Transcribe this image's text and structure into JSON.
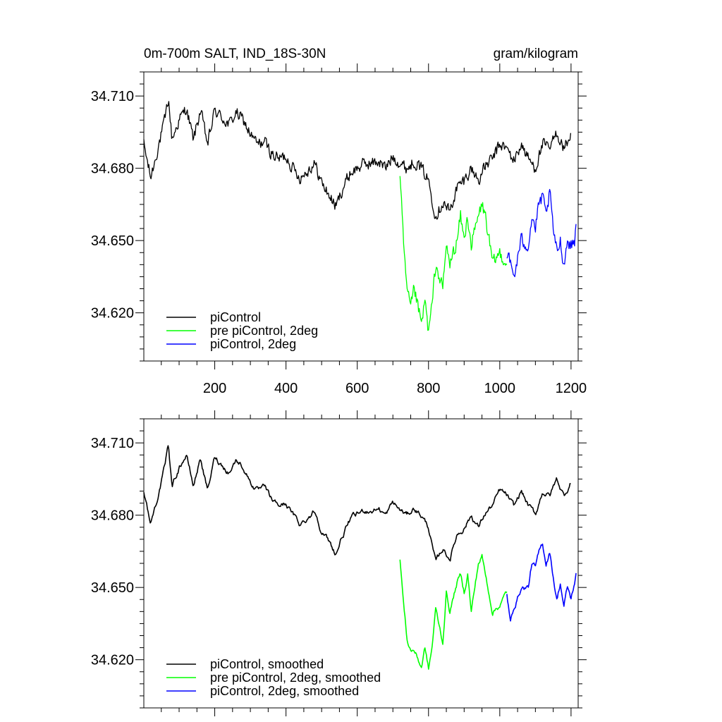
{
  "figure": {
    "title_left": "0m-700m SALT, IND_18S-30N",
    "title_right": "gram/kilogram"
  },
  "colors": {
    "piControl": "#000000",
    "pre2deg": "#00ff00",
    "pi2deg": "#0000ff"
  },
  "chart_data": [
    {
      "type": "line",
      "panel": "raw",
      "xlim": [
        1,
        1220
      ],
      "ylim": [
        34.6,
        34.72
      ],
      "xticks": [
        200,
        400,
        600,
        800,
        1000,
        1200
      ],
      "xtick_labels": [
        "200",
        "400",
        "600",
        "800",
        "1000",
        "1200"
      ],
      "yticks": [
        34.62,
        34.65,
        34.68,
        34.71
      ],
      "ytick_labels": [
        "34.620",
        "34.650",
        "34.680",
        "34.710"
      ],
      "legend_position": "bottom-left",
      "series": [
        {
          "name": "piControl",
          "color_key": "piControl",
          "x": [
            1,
            20,
            40,
            60,
            70,
            80,
            100,
            120,
            140,
            160,
            180,
            200,
            220,
            240,
            260,
            280,
            300,
            320,
            340,
            360,
            380,
            400,
            420,
            440,
            460,
            480,
            500,
            520,
            540,
            560,
            580,
            600,
            620,
            640,
            660,
            680,
            700,
            720,
            740,
            760,
            780,
            800,
            820,
            840,
            860,
            880,
            900,
            920,
            940,
            960,
            980,
            1000,
            1020,
            1040,
            1060,
            1080,
            1100,
            1120,
            1140,
            1160,
            1180,
            1200
          ],
          "y": [
            34.69,
            34.676,
            34.688,
            34.7,
            34.709,
            34.692,
            34.7,
            34.705,
            34.692,
            34.704,
            34.69,
            34.704,
            34.701,
            34.698,
            34.703,
            34.7,
            34.694,
            34.69,
            34.691,
            34.686,
            34.684,
            34.685,
            34.68,
            34.676,
            34.679,
            34.682,
            34.674,
            34.669,
            34.664,
            34.672,
            34.678,
            34.68,
            34.682,
            34.682,
            34.683,
            34.68,
            34.685,
            34.682,
            34.68,
            34.683,
            34.68,
            34.675,
            34.66,
            34.666,
            34.662,
            34.672,
            34.675,
            34.68,
            34.675,
            34.681,
            34.684,
            34.69,
            34.688,
            34.683,
            34.69,
            34.684,
            34.68,
            34.69,
            34.688,
            34.695,
            34.688,
            34.694
          ]
        },
        {
          "name": "pre piControl, 2deg",
          "color_key": "pre2deg",
          "x": [
            720,
            730,
            740,
            750,
            760,
            780,
            790,
            800,
            810,
            820,
            840,
            850,
            860,
            880,
            890,
            900,
            910,
            920,
            940,
            950,
            960,
            980,
            1000,
            1020
          ],
          "y": [
            34.676,
            34.648,
            34.628,
            34.622,
            34.63,
            34.615,
            34.625,
            34.612,
            34.623,
            34.64,
            34.63,
            34.648,
            34.64,
            34.65,
            34.66,
            34.65,
            34.66,
            34.648,
            34.66,
            34.665,
            34.66,
            34.64,
            34.645,
            34.64
          ],
          "noise": 0.004
        },
        {
          "name": "piControl, 2deg",
          "color_key": "pi2deg",
          "x": [
            1020,
            1030,
            1040,
            1060,
            1080,
            1090,
            1100,
            1110,
            1120,
            1130,
            1140,
            1150,
            1160,
            1170,
            1180,
            1190,
            1200,
            1210,
            1215
          ],
          "y": [
            34.645,
            34.64,
            34.635,
            34.65,
            34.648,
            34.66,
            34.655,
            34.665,
            34.668,
            34.66,
            34.67,
            34.655,
            34.645,
            34.65,
            34.64,
            34.65,
            34.648,
            34.65,
            34.66
          ],
          "noise": 0.004
        }
      ]
    },
    {
      "type": "line",
      "panel": "smoothed",
      "xlim": [
        1,
        1220
      ],
      "ylim": [
        34.6,
        34.72
      ],
      "xticks": [
        200,
        400,
        600,
        800,
        1000,
        1200
      ],
      "yticks": [
        34.62,
        34.65,
        34.68,
        34.71
      ],
      "ytick_labels": [
        "34.620",
        "34.650",
        "34.680",
        "34.710"
      ],
      "legend_position": "bottom-left",
      "series": [
        {
          "name": "piControl, smoothed",
          "color_key": "piControl",
          "x": [
            1,
            20,
            40,
            60,
            70,
            80,
            100,
            120,
            140,
            160,
            180,
            200,
            220,
            240,
            260,
            280,
            300,
            320,
            340,
            360,
            380,
            400,
            420,
            440,
            460,
            480,
            500,
            520,
            540,
            560,
            580,
            600,
            620,
            640,
            660,
            680,
            700,
            720,
            740,
            760,
            780,
            800,
            820,
            840,
            860,
            880,
            900,
            920,
            940,
            960,
            980,
            1000,
            1020,
            1040,
            1060,
            1080,
            1100,
            1120,
            1140,
            1160,
            1180,
            1200
          ],
          "y": [
            34.69,
            34.676,
            34.688,
            34.7,
            34.709,
            34.692,
            34.7,
            34.705,
            34.692,
            34.704,
            34.69,
            34.704,
            34.701,
            34.698,
            34.703,
            34.7,
            34.694,
            34.69,
            34.691,
            34.686,
            34.684,
            34.685,
            34.68,
            34.676,
            34.679,
            34.682,
            34.674,
            34.669,
            34.664,
            34.672,
            34.678,
            34.68,
            34.682,
            34.682,
            34.683,
            34.68,
            34.685,
            34.682,
            34.68,
            34.683,
            34.68,
            34.675,
            34.66,
            34.666,
            34.662,
            34.672,
            34.675,
            34.68,
            34.675,
            34.681,
            34.684,
            34.69,
            34.688,
            34.683,
            34.69,
            34.684,
            34.68,
            34.69,
            34.688,
            34.695,
            34.688,
            34.694
          ]
        },
        {
          "name": "pre piControl, 2deg, smoothed",
          "color_key": "pre2deg",
          "x": [
            720,
            730,
            740,
            750,
            760,
            780,
            790,
            800,
            810,
            820,
            840,
            850,
            860,
            880,
            890,
            900,
            910,
            920,
            940,
            950,
            960,
            980,
            1000,
            1020
          ],
          "y": [
            34.662,
            34.643,
            34.628,
            34.624,
            34.624,
            34.617,
            34.625,
            34.616,
            34.625,
            34.641,
            34.627,
            34.648,
            34.64,
            34.652,
            34.655,
            34.648,
            34.656,
            34.64,
            34.66,
            34.663,
            34.655,
            34.64,
            34.643,
            34.648
          ]
        },
        {
          "name": "piControl, 2deg, smoothed",
          "color_key": "pi2deg",
          "x": [
            1020,
            1030,
            1040,
            1060,
            1080,
            1090,
            1100,
            1110,
            1120,
            1130,
            1140,
            1150,
            1160,
            1170,
            1180,
            1190,
            1200,
            1210,
            1215
          ],
          "y": [
            34.647,
            34.635,
            34.642,
            34.65,
            34.65,
            34.66,
            34.658,
            34.664,
            34.668,
            34.66,
            34.665,
            34.655,
            34.645,
            34.652,
            34.642,
            34.65,
            34.645,
            34.652,
            34.656
          ]
        }
      ]
    }
  ]
}
